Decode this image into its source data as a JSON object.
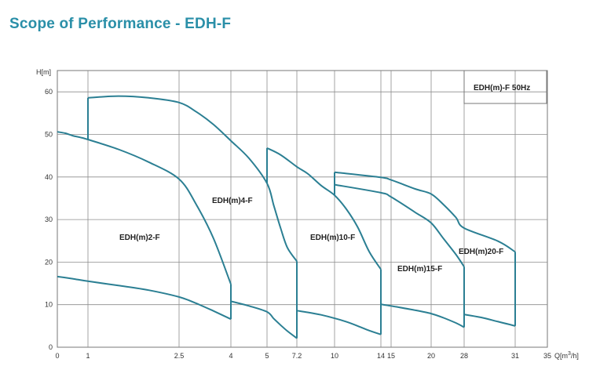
{
  "page_title": "Scope of Performance - EDH-F",
  "chart_data": {
    "type": "line",
    "title": "Scope of Performance - EDH-F",
    "xlabel": "Q[m³/h]",
    "ylabel": "H[m]",
    "legend": "EDH(m)-F  50Hz",
    "x_ticks": [
      "0",
      "1",
      "2.5",
      "4",
      "5",
      "7.2",
      "10",
      "14",
      "15",
      "20",
      "28",
      "31",
      "35"
    ],
    "y_ticks": [
      0,
      10,
      20,
      30,
      40,
      50,
      60
    ],
    "ylim": [
      0,
      65
    ],
    "regions": [
      {
        "name": "EDH(m)2-F",
        "upper": [
          [
            0,
            50.6
          ],
          [
            0.25,
            50.3
          ],
          [
            0.5,
            49.7
          ],
          [
            0.75,
            49.3
          ],
          [
            1,
            48.8
          ],
          [
            1.5,
            46.5
          ],
          [
            2,
            43.5
          ],
          [
            2.5,
            39.5
          ],
          [
            3,
            33.5
          ],
          [
            3.5,
            25.5
          ],
          [
            4,
            14.8
          ]
        ],
        "lower": [
          [
            0,
            16.6
          ],
          [
            0.5,
            16.1
          ],
          [
            1,
            15.5
          ],
          [
            1.5,
            14.5
          ],
          [
            2,
            13.4
          ],
          [
            2.5,
            11.8
          ],
          [
            3,
            10.3
          ],
          [
            3.5,
            8.5
          ],
          [
            4,
            6.6
          ]
        ],
        "min_flow": 0,
        "max_flow": 4
      },
      {
        "name": "EDH(m)4-F",
        "upper": [
          [
            1,
            58.6
          ],
          [
            1.5,
            59.0
          ],
          [
            2,
            58.6
          ],
          [
            2.5,
            57.5
          ],
          [
            3,
            55.3
          ],
          [
            3.5,
            52.3
          ],
          [
            4,
            48.5
          ],
          [
            4.5,
            44.4
          ],
          [
            5,
            38.5
          ],
          [
            5.5,
            33.3
          ],
          [
            6,
            28.0
          ],
          [
            6.5,
            23.4
          ],
          [
            7.2,
            20.2
          ]
        ],
        "lower": [
          [
            4,
            10.8
          ],
          [
            4.5,
            9.7
          ],
          [
            5,
            8.3
          ],
          [
            5.5,
            6.7
          ],
          [
            6,
            5.2
          ],
          [
            6.5,
            3.8
          ],
          [
            7.2,
            2.1
          ]
        ],
        "min_flow": 1,
        "max_flow": 7.2
      },
      {
        "name": "EDH(m)10-F",
        "upper": [
          [
            5,
            46.8
          ],
          [
            6,
            45.2
          ],
          [
            7.2,
            42.4
          ],
          [
            8,
            40.8
          ],
          [
            9,
            38.0
          ],
          [
            10,
            35.7
          ],
          [
            11,
            32.5
          ],
          [
            12,
            28.2
          ],
          [
            13,
            22.4
          ],
          [
            14,
            18.3
          ]
        ],
        "lower": [
          [
            7.2,
            8.6
          ],
          [
            8,
            8.2
          ],
          [
            9,
            7.6
          ],
          [
            10,
            6.8
          ],
          [
            11,
            6.0
          ],
          [
            12,
            5.0
          ],
          [
            13,
            3.9
          ],
          [
            14,
            3.0
          ]
        ],
        "min_flow": 5,
        "max_flow": 14
      },
      {
        "name": "EDH(m)15-F",
        "upper": [
          [
            10,
            38.2
          ],
          [
            14,
            36.3
          ],
          [
            15,
            35.3
          ],
          [
            18,
            31.7
          ],
          [
            20,
            29.2
          ],
          [
            23,
            25.5
          ],
          [
            26,
            21.8
          ],
          [
            28,
            18.9
          ]
        ],
        "lower": [
          [
            14,
            10.1
          ],
          [
            15,
            9.7
          ],
          [
            18,
            8.7
          ],
          [
            20,
            7.9
          ],
          [
            23,
            6.9
          ],
          [
            26,
            5.7
          ],
          [
            28,
            4.7
          ]
        ],
        "min_flow": 10,
        "max_flow": 28
      },
      {
        "name": "EDH(m)20-F",
        "upper": [
          [
            10,
            41.1
          ],
          [
            14,
            39.9
          ],
          [
            15,
            39.3
          ],
          [
            18,
            37.2
          ],
          [
            20,
            36.0
          ],
          [
            23,
            33.5
          ],
          [
            26,
            30.5
          ],
          [
            28,
            28.0
          ],
          [
            30,
            24.9
          ],
          [
            31,
            22.4
          ]
        ],
        "lower": [
          [
            28,
            7.7
          ],
          [
            29,
            7.0
          ],
          [
            30,
            6.0
          ],
          [
            31,
            5.0
          ]
        ],
        "min_flow": 10,
        "max_flow": 31
      }
    ]
  }
}
